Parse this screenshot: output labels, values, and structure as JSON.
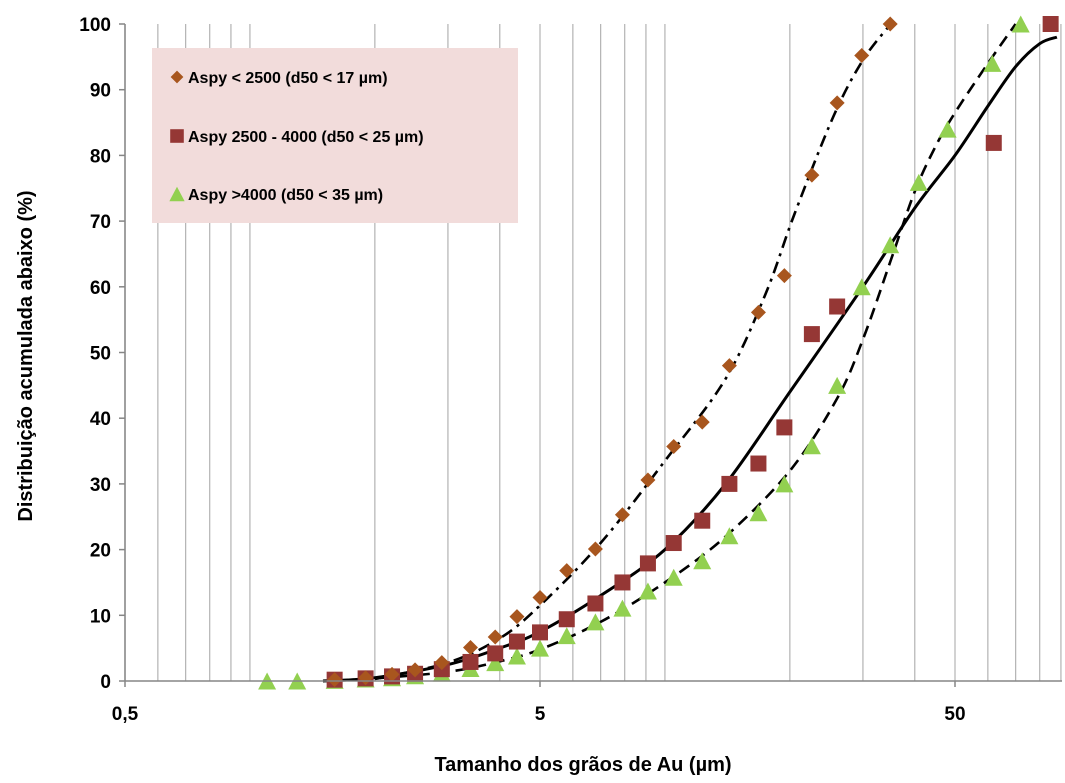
{
  "chart_data": {
    "type": "scatter",
    "title": "",
    "xlabel": "Tamanho dos grãos de Au (µm)",
    "ylabel": "Distribuição acumulada abaixo (%)",
    "x_scale": "log",
    "xlim": [
      0.5,
      90
    ],
    "ylim": [
      0,
      100
    ],
    "x_tick_values": [
      0.5,
      5,
      50
    ],
    "x_tick_labels": [
      "0,5",
      "5",
      "50"
    ],
    "y_ticks": [
      0,
      10,
      20,
      30,
      40,
      50,
      60,
      70,
      80,
      90,
      100
    ],
    "grid": "vertical log minor gridlines",
    "legend_position": "top-left",
    "legend_background": "#f2dcdb",
    "series": [
      {
        "name": "Aspy < 2500 (d50 < 17 µm)",
        "marker": "diamond",
        "color": "#a8561e",
        "fit_line": "dash-dot",
        "points": [
          [
            1.6,
            0.2
          ],
          [
            1.9,
            0.5
          ],
          [
            2.2,
            1.0
          ],
          [
            2.5,
            1.7
          ],
          [
            2.9,
            2.8
          ],
          [
            3.4,
            5.1
          ],
          [
            3.9,
            6.7
          ],
          [
            4.4,
            9.8
          ],
          [
            5.0,
            12.7
          ],
          [
            5.8,
            16.8
          ],
          [
            6.8,
            20.1
          ],
          [
            7.9,
            25.3
          ],
          [
            9.1,
            30.6
          ],
          [
            10.5,
            35.7
          ],
          [
            12.3,
            39.4
          ],
          [
            14.3,
            48.0
          ],
          [
            16.8,
            56.1
          ],
          [
            19.4,
            61.7
          ],
          [
            22.6,
            77.0
          ],
          [
            26.0,
            88.0
          ],
          [
            29.8,
            95.2
          ],
          [
            34.9,
            100
          ]
        ],
        "fit_points": [
          [
            2.0,
            0.3
          ],
          [
            3.0,
            2.8
          ],
          [
            4.0,
            6.5
          ],
          [
            5.0,
            11.5
          ],
          [
            7.0,
            21.0
          ],
          [
            10.0,
            33.5
          ],
          [
            14.0,
            46.0
          ],
          [
            17.5,
            59.0
          ],
          [
            20.5,
            71.0
          ],
          [
            25.5,
            86.0
          ],
          [
            30.0,
            94.5
          ],
          [
            35.0,
            100
          ]
        ]
      },
      {
        "name": "Aspy 2500 - 4000 (d50 < 25 µm)",
        "marker": "square",
        "color": "#953735",
        "fit_line": "solid",
        "points": [
          [
            1.6,
            0.2
          ],
          [
            1.9,
            0.4
          ],
          [
            2.2,
            0.7
          ],
          [
            2.5,
            1.1
          ],
          [
            2.9,
            1.8
          ],
          [
            3.4,
            2.9
          ],
          [
            3.9,
            4.2
          ],
          [
            4.4,
            6.0
          ],
          [
            5.0,
            7.4
          ],
          [
            5.8,
            9.4
          ],
          [
            6.8,
            11.8
          ],
          [
            7.9,
            15.0
          ],
          [
            9.1,
            17.9
          ],
          [
            10.5,
            21.0
          ],
          [
            12.3,
            24.4
          ],
          [
            14.3,
            30.0
          ],
          [
            16.8,
            33.1
          ],
          [
            19.4,
            38.6
          ],
          [
            22.6,
            52.8
          ],
          [
            26.0,
            57.0
          ],
          [
            62.0,
            81.9
          ],
          [
            85.0,
            100
          ]
        ],
        "fit_points": [
          [
            1.5,
            0.0
          ],
          [
            2.0,
            0.5
          ],
          [
            3.0,
            2.5
          ],
          [
            4.0,
            5.0
          ],
          [
            5.0,
            7.5
          ],
          [
            7.0,
            13.0
          ],
          [
            10.0,
            20.0
          ],
          [
            14.0,
            30.0
          ],
          [
            20.0,
            44.0
          ],
          [
            30.0,
            60.0
          ],
          [
            40.0,
            72.0
          ],
          [
            50.0,
            80.0
          ],
          [
            60.0,
            87.5
          ],
          [
            70.0,
            93.5
          ],
          [
            80.0,
            97.0
          ],
          [
            88.0,
            98.0
          ]
        ]
      },
      {
        "name": "Aspy >4000 (d50 < 35 µm)",
        "marker": "triangle",
        "color": "#92d050",
        "fit_line": "dashed",
        "points": [
          [
            1.1,
            0.0
          ],
          [
            1.3,
            0.0
          ],
          [
            1.6,
            0.1
          ],
          [
            1.9,
            0.3
          ],
          [
            2.2,
            0.5
          ],
          [
            2.5,
            0.8
          ],
          [
            2.9,
            1.2
          ],
          [
            3.4,
            1.9
          ],
          [
            3.9,
            2.8
          ],
          [
            4.4,
            3.8
          ],
          [
            5.0,
            5.0
          ],
          [
            5.8,
            6.9
          ],
          [
            6.8,
            9.0
          ],
          [
            7.9,
            11.1
          ],
          [
            9.1,
            13.7
          ],
          [
            10.5,
            15.8
          ],
          [
            12.3,
            18.3
          ],
          [
            14.3,
            22.1
          ],
          [
            16.8,
            25.6
          ],
          [
            19.4,
            30.0
          ],
          [
            22.6,
            35.8
          ],
          [
            26.0,
            45.0
          ],
          [
            29.8,
            60.0
          ],
          [
            34.9,
            66.4
          ],
          [
            40.9,
            75.9
          ],
          [
            48.0,
            84.0
          ],
          [
            61.5,
            94.0
          ],
          [
            72.0,
            100
          ]
        ],
        "fit_points": [
          [
            1.5,
            0.0
          ],
          [
            2.0,
            0.4
          ],
          [
            3.0,
            1.4
          ],
          [
            4.0,
            3.0
          ],
          [
            5.0,
            4.8
          ],
          [
            7.0,
            9.0
          ],
          [
            10.0,
            15.0
          ],
          [
            14.0,
            22.0
          ],
          [
            20.0,
            32.0
          ],
          [
            26.0,
            43.0
          ],
          [
            30.0,
            52.0
          ],
          [
            35.0,
            64.0
          ],
          [
            40.0,
            74.5
          ],
          [
            45.0,
            81.5
          ],
          [
            50.0,
            86.5
          ],
          [
            60.0,
            94.0
          ],
          [
            70.0,
            100
          ]
        ]
      }
    ]
  }
}
